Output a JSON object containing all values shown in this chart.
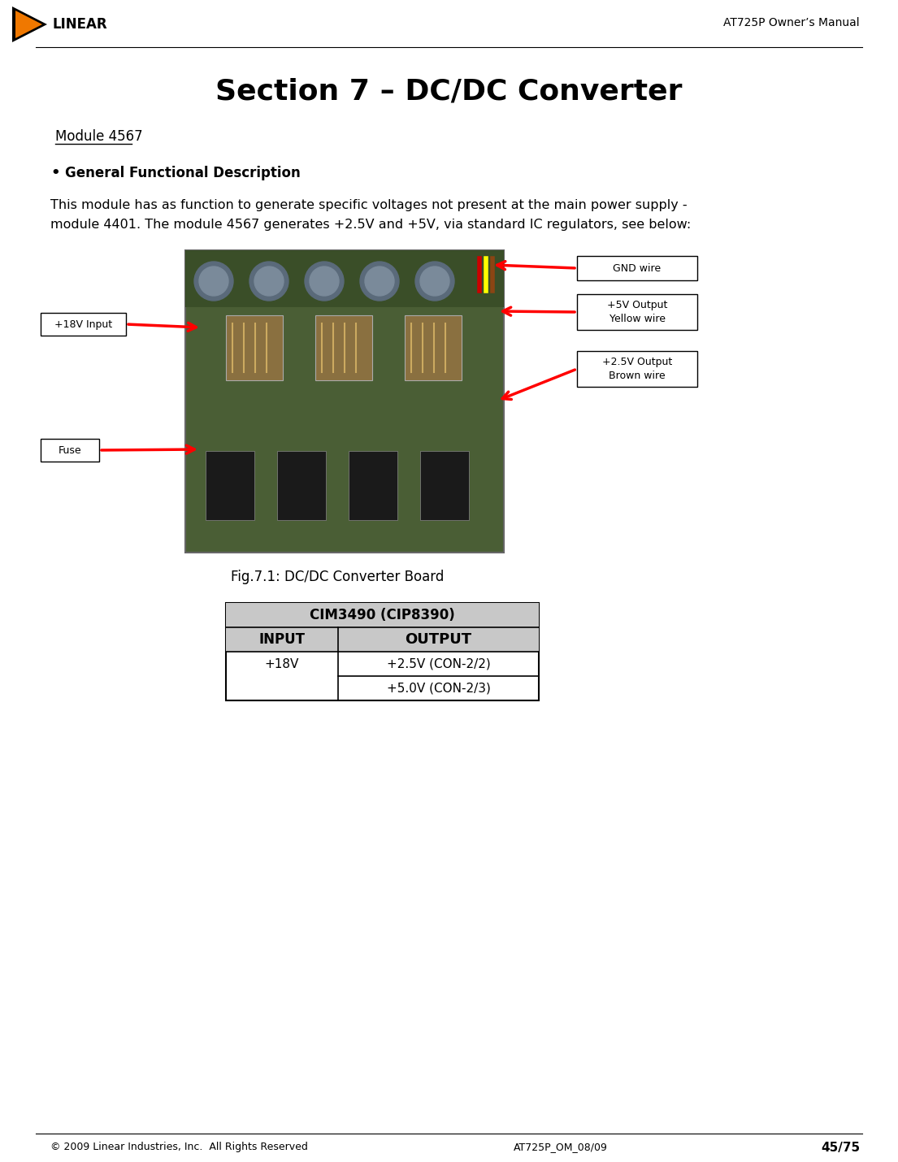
{
  "page_width": 11.05,
  "page_height": 14.3,
  "bg_color": "#ffffff",
  "header_text": "AT725P Owner’s Manual",
  "footer_left": "© 2009 Linear Industries, Inc.  All Rights Reserved",
  "footer_center": "AT725P_OM_08/09",
  "footer_right": "45/75",
  "section_title": "Section 7 – DC/DC Converter",
  "module_label": "Module 4567",
  "bullet_header": "General Functional Description",
  "body_text_line1": "This module has as function to generate specific voltages not present at the main power supply -",
  "body_text_line2": "module 4401. The module 4567 generates +2.5V and +5V, via standard IC regulators, see below:",
  "fig_caption": "Fig.7.1: DC/DC Converter Board",
  "table_title": "CIM3490 (CIP8390)",
  "table_col1_header": "INPUT",
  "table_col2_header": "OUTPUT",
  "table_input": "+18V",
  "table_output1": "+2.5V (CON-2/2)",
  "table_output2": "+5.0V (CON-2/3)",
  "label_gnd": "GND wire",
  "label_5v": "+5V Output\nYellow wire",
  "label_25v": "+2.5V Output\nBrown wire",
  "label_18v": "+18V Input",
  "label_fuse": "Fuse",
  "arrow_color": "#ff0000",
  "box_border_color": "#000000",
  "header_line_color": "#000000",
  "table_header_bg": "#c8c8c8",
  "table_border_color": "#000000",
  "logo_tri_outer": "#000000",
  "logo_tri_inner": "#f07800",
  "logo_text": "LINEAR"
}
